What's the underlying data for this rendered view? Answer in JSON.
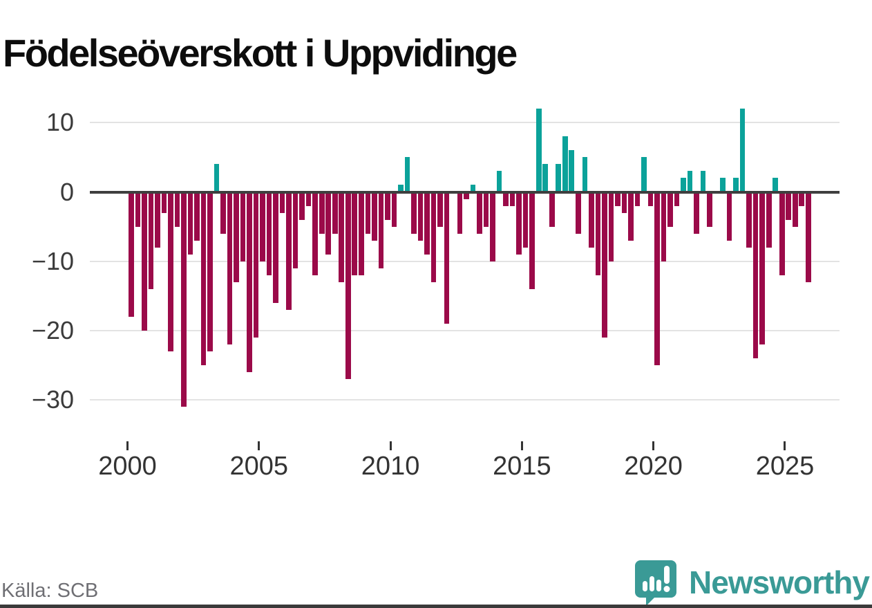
{
  "header": {
    "title": "Födelseöverskott i Uppvidinge"
  },
  "footer": {
    "source": "Källa: SCB",
    "brand": "Newsworthy"
  },
  "chart_data": {
    "type": "bar",
    "title": "Födelseöverskott i Uppvidinge",
    "xlabel": "",
    "ylabel": "",
    "ylim": [
      -33,
      13
    ],
    "grid": true,
    "legend": "none",
    "colors": {
      "positive": "#0ba29a",
      "negative": "#9b0a49",
      "zero_axis": "#3f3f3f",
      "gridline": "#e3e3e3"
    },
    "y_ticks": [
      {
        "value": 10,
        "label": "10"
      },
      {
        "value": 0,
        "label": "0"
      },
      {
        "value": -10,
        "label": "−10"
      },
      {
        "value": -20,
        "label": "−20"
      },
      {
        "value": -30,
        "label": "−30"
      }
    ],
    "x_ticks": [
      2000,
      2005,
      2010,
      2015,
      2020,
      2025
    ],
    "frequency": "quarterly",
    "years": [
      {
        "year": 2000,
        "values": [
          -18,
          -5,
          -20,
          -14
        ]
      },
      {
        "year": 2001,
        "values": [
          -8,
          -3,
          -23,
          -5
        ]
      },
      {
        "year": 2002,
        "values": [
          -31,
          -9,
          -7,
          -25
        ]
      },
      {
        "year": 2003,
        "values": [
          -23,
          4,
          -6,
          -22
        ]
      },
      {
        "year": 2004,
        "values": [
          -13,
          -10,
          -26,
          -21
        ]
      },
      {
        "year": 2005,
        "values": [
          -10,
          -12,
          -16,
          -3
        ]
      },
      {
        "year": 2006,
        "values": [
          -17,
          -11,
          -4,
          -2
        ]
      },
      {
        "year": 2007,
        "values": [
          -12,
          -6,
          -9,
          -6
        ]
      },
      {
        "year": 2008,
        "values": [
          -13,
          -27,
          -12,
          -12
        ]
      },
      {
        "year": 2009,
        "values": [
          -6,
          -7,
          -11,
          -4
        ]
      },
      {
        "year": 2010,
        "values": [
          -5,
          1,
          5,
          -6
        ]
      },
      {
        "year": 2011,
        "values": [
          -7,
          -9,
          -13,
          -5
        ]
      },
      {
        "year": 2012,
        "values": [
          -19,
          0,
          -6,
          -1
        ]
      },
      {
        "year": 2013,
        "values": [
          1,
          -6,
          -5,
          -10
        ]
      },
      {
        "year": 2014,
        "values": [
          3,
          -2,
          -2,
          -9
        ]
      },
      {
        "year": 2015,
        "values": [
          -8,
          -14,
          12,
          4
        ]
      },
      {
        "year": 2016,
        "values": [
          -5,
          4,
          8,
          6
        ]
      },
      {
        "year": 2017,
        "values": [
          -6,
          5,
          -8,
          -12
        ]
      },
      {
        "year": 2018,
        "values": [
          -21,
          -10,
          -2,
          -3
        ]
      },
      {
        "year": 2019,
        "values": [
          -7,
          -2,
          5,
          -2
        ]
      },
      {
        "year": 2020,
        "values": [
          -25,
          -10,
          -5,
          -2
        ]
      },
      {
        "year": 2021,
        "values": [
          2,
          3,
          -6,
          3
        ]
      },
      {
        "year": 2022,
        "values": [
          -5,
          0,
          2,
          -7
        ]
      },
      {
        "year": 2023,
        "values": [
          2,
          12,
          -8,
          -24
        ]
      },
      {
        "year": 2024,
        "values": [
          -22,
          -8,
          2,
          -12
        ]
      },
      {
        "year": 2025,
        "values": [
          -4,
          -5,
          -2,
          -13
        ]
      }
    ]
  }
}
